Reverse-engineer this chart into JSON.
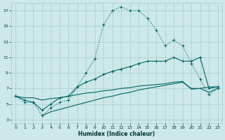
{
  "xlabel": "Humidex (Indice chaleur)",
  "bg_color": "#cce8e8",
  "grid_color": "#aacccc",
  "line_color": "#006666",
  "xlim": [
    -0.5,
    23.5
  ],
  "ylim": [
    2.5,
    18.0
  ],
  "xticks": [
    0,
    1,
    2,
    3,
    4,
    5,
    6,
    7,
    8,
    9,
    10,
    11,
    12,
    13,
    14,
    15,
    16,
    17,
    18,
    19,
    20,
    21,
    22,
    23
  ],
  "yticks": [
    3,
    5,
    7,
    9,
    11,
    13,
    15,
    17
  ],
  "s1_x": [
    0,
    1,
    2,
    3,
    4,
    5,
    6,
    7,
    8,
    9,
    10,
    11,
    12,
    13,
    14,
    15,
    16,
    17,
    18,
    19,
    20,
    21,
    22,
    23
  ],
  "s1_y": [
    6.0,
    5.2,
    5.2,
    3.5,
    4.5,
    5.2,
    5.5,
    7.2,
    9.0,
    10.8,
    15.2,
    17.0,
    17.5,
    17.0,
    17.0,
    16.0,
    14.5,
    12.5,
    13.2,
    12.5,
    10.2,
    8.2,
    6.2,
    7.0
  ],
  "s2_x": [
    0,
    1,
    2,
    3,
    4,
    5,
    6,
    7,
    8,
    9,
    10,
    11,
    12,
    13,
    14,
    15,
    16,
    17,
    18,
    19,
    20,
    21,
    22,
    23
  ],
  "s2_y": [
    6.0,
    5.5,
    5.2,
    4.2,
    5.0,
    5.8,
    6.0,
    7.2,
    7.8,
    8.2,
    8.8,
    9.2,
    9.5,
    9.8,
    10.2,
    10.5,
    10.5,
    10.5,
    11.0,
    10.5,
    10.5,
    11.0,
    7.0,
    7.2
  ],
  "s3_x": [
    0,
    1,
    2,
    3,
    4,
    5,
    6,
    7,
    8,
    9,
    10,
    11,
    12,
    13,
    14,
    15,
    16,
    17,
    18,
    19,
    20,
    21,
    22,
    23
  ],
  "s3_y": [
    6.0,
    5.8,
    5.8,
    5.5,
    5.7,
    5.8,
    6.0,
    6.2,
    6.4,
    6.5,
    6.7,
    6.8,
    7.0,
    7.1,
    7.3,
    7.4,
    7.5,
    7.6,
    7.8,
    7.9,
    6.9,
    7.0,
    7.2,
    7.2
  ],
  "s4_x": [
    3,
    4,
    5,
    6,
    7,
    8,
    9,
    10,
    11,
    12,
    13,
    14,
    15,
    16,
    17,
    18,
    19,
    20,
    21,
    22,
    23
  ],
  "s4_y": [
    3.5,
    4.0,
    4.3,
    4.6,
    4.9,
    5.2,
    5.5,
    5.8,
    6.0,
    6.3,
    6.5,
    6.8,
    7.0,
    7.2,
    7.4,
    7.6,
    7.8,
    7.0,
    7.0,
    6.5,
    7.0
  ]
}
